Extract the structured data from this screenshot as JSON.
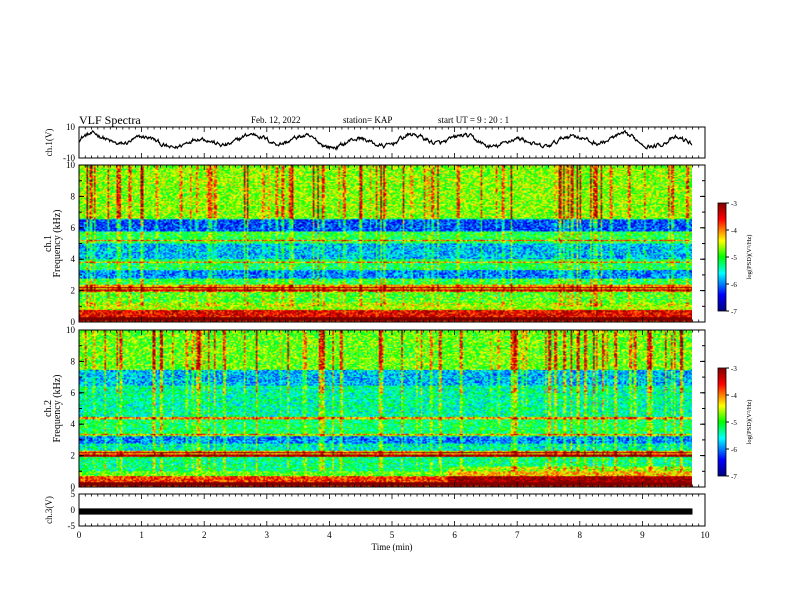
{
  "header": {
    "title": "VLF Spectra",
    "date": "Feb. 12, 2022",
    "station": "station= KAP",
    "start_ut": "start  UT =   9 : 20 : 1"
  },
  "chart_data": [
    {
      "type": "line",
      "panel": "ch1-waveform",
      "ylabel": "ch.1(V)",
      "ylim": [
        -10,
        10
      ],
      "yticks": [
        "10",
        "-10"
      ],
      "xlim": [
        0,
        10
      ],
      "description_values_envelope": {
        "min": -6,
        "max": 8
      }
    },
    {
      "type": "heatmap",
      "panel": "ch1-spectrogram",
      "ylabel_line1": "ch.1",
      "ylabel_line2": "Frequency (kHz)",
      "ylim": [
        0,
        10
      ],
      "yticks": [
        "0",
        "2",
        "4",
        "6",
        "8",
        "10"
      ],
      "xlim": [
        0,
        9.8
      ],
      "colorbar": {
        "label": "log(PSD)(V²/Hz)",
        "range": [
          -7,
          -3
        ],
        "ticks": [
          "-3",
          "-4",
          "-5",
          "-6",
          "-7"
        ]
      },
      "spectral_band_levels": [
        {
          "f": [
            0.0,
            0.3
          ],
          "level": -3.6
        },
        {
          "f": [
            0.3,
            1.2
          ],
          "level": -4.6
        },
        {
          "f": [
            1.2,
            2.0
          ],
          "level": -4.9
        },
        {
          "f": [
            2.0,
            2.4
          ],
          "level": -4.2
        },
        {
          "f": [
            2.4,
            2.8
          ],
          "level": -5.1
        },
        {
          "f": [
            2.8,
            3.3
          ],
          "level": -6.0
        },
        {
          "f": [
            3.3,
            4.0
          ],
          "level": -5.2
        },
        {
          "f": [
            4.0,
            5.0
          ],
          "level": -5.8
        },
        {
          "f": [
            5.0,
            5.8
          ],
          "level": -5.1
        },
        {
          "f": [
            5.8,
            6.6
          ],
          "level": -6.2
        },
        {
          "f": [
            6.6,
            10.0
          ],
          "level": -4.7
        }
      ],
      "harmonic_lines_khz": [
        0.15,
        0.3,
        0.45,
        0.6,
        0.75,
        2.0,
        2.2,
        3.8,
        5.2,
        6.6
      ]
    },
    {
      "type": "heatmap",
      "panel": "ch2-spectrogram",
      "ylabel_line1": "ch.2",
      "ylabel_line2": "Frequency (kHz)",
      "ylim": [
        0,
        10
      ],
      "yticks": [
        "0",
        "2",
        "4",
        "6",
        "8",
        "10"
      ],
      "xlim": [
        0,
        9.8
      ],
      "colorbar": {
        "label": "log(PSD)(V²/Hz)",
        "range": [
          -7,
          -3
        ],
        "ticks": [
          "-3",
          "-4",
          "-5",
          "-6",
          "-7"
        ]
      },
      "spectral_band_levels": [
        {
          "f": [
            0.0,
            0.3
          ],
          "level": -3.6
        },
        {
          "f": [
            0.3,
            1.0
          ],
          "level": -4.8
        },
        {
          "f": [
            1.0,
            1.9
          ],
          "level": -5.3
        },
        {
          "f": [
            1.9,
            2.3
          ],
          "level": -4.3
        },
        {
          "f": [
            2.3,
            2.8
          ],
          "level": -5.5
        },
        {
          "f": [
            2.8,
            3.3
          ],
          "level": -6.0
        },
        {
          "f": [
            3.3,
            4.5
          ],
          "level": -5.2
        },
        {
          "f": [
            4.5,
            6.5
          ],
          "level": -5.4
        },
        {
          "f": [
            6.5,
            7.5
          ],
          "level": -5.8
        },
        {
          "f": [
            7.5,
            10.0
          ],
          "level": -4.8
        }
      ],
      "harmonic_lines_khz": [
        0.15,
        0.3,
        0.45,
        0.6,
        2.0,
        2.2,
        3.3,
        4.4
      ]
    },
    {
      "type": "line",
      "panel": "ch3-waveform",
      "ylabel": "ch.3(V)",
      "ylim": [
        -5,
        5
      ],
      "yticks": [
        "5",
        "0",
        "-5"
      ],
      "xlim": [
        0,
        10
      ],
      "xlabel": "Time (min)",
      "xticks": [
        "0",
        "1",
        "2",
        "3",
        "4",
        "5",
        "6",
        "7",
        "8",
        "9",
        "10"
      ],
      "constant_level": 0,
      "trace_thickness_v": 1.0
    }
  ],
  "colors": {
    "axis": "#000000",
    "trace": "#000000",
    "colormap": [
      "#000080",
      "#0000ff",
      "#00ffff",
      "#00ff00",
      "#ffff00",
      "#ff0000",
      "#800000"
    ]
  }
}
